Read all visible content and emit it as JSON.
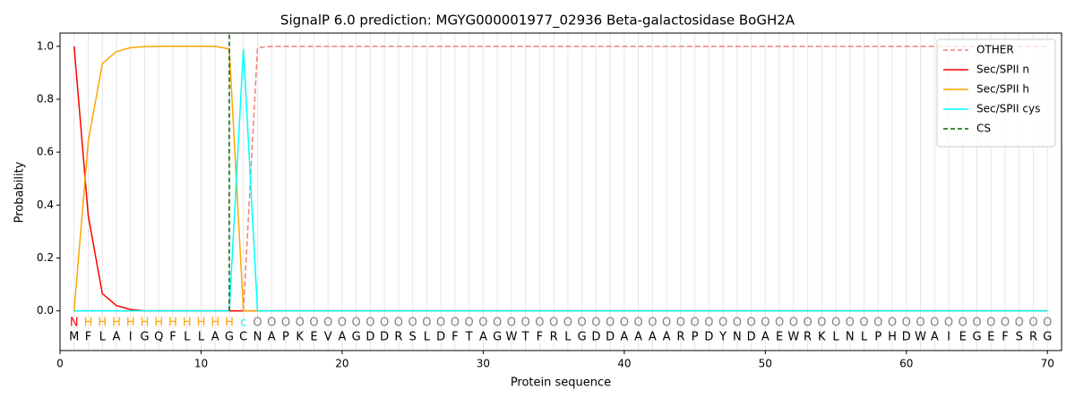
{
  "chart_data": {
    "type": "line",
    "title": "SignalP 6.0 prediction: MGYG000001977_02936 Beta-galactosidase BoGH2A",
    "xlabel": "Protein sequence",
    "ylabel": "Probability",
    "x": [
      1,
      2,
      3,
      4,
      5,
      6,
      7,
      8,
      9,
      10,
      11,
      12,
      13,
      14,
      15,
      16,
      17,
      18,
      19,
      20,
      21,
      22,
      23,
      24,
      25,
      26,
      27,
      28,
      29,
      30,
      31,
      32,
      33,
      34,
      35,
      36,
      37,
      38,
      39,
      40,
      41,
      42,
      43,
      44,
      45,
      46,
      47,
      48,
      49,
      50,
      51,
      52,
      53,
      54,
      55,
      56,
      57,
      58,
      59,
      60,
      61,
      62,
      63,
      64,
      65,
      66,
      67,
      68,
      69,
      70
    ],
    "sequence": [
      "M",
      "F",
      "L",
      "A",
      "I",
      "G",
      "Q",
      "F",
      "L",
      "L",
      "A",
      "G",
      "C",
      "N",
      "A",
      "P",
      "K",
      "E",
      "V",
      "A",
      "G",
      "D",
      "D",
      "R",
      "S",
      "L",
      "D",
      "F",
      "T",
      "A",
      "G",
      "W",
      "T",
      "F",
      "R",
      "L",
      "G",
      "D",
      "D",
      "A",
      "A",
      "A",
      "A",
      "R",
      "P",
      "D",
      "Y",
      "N",
      "D",
      "A",
      "E",
      "W",
      "R",
      "K",
      "L",
      "N",
      "L",
      "P",
      "H",
      "D",
      "W",
      "A",
      "I",
      "E",
      "G",
      "E",
      "F",
      "S",
      "R",
      "G"
    ],
    "regions": [
      "N",
      "H",
      "H",
      "H",
      "H",
      "H",
      "H",
      "H",
      "H",
      "H",
      "H",
      "H",
      "c",
      "O",
      "O",
      "O",
      "O",
      "O",
      "O",
      "O",
      "O",
      "O",
      "O",
      "O",
      "O",
      "O",
      "O",
      "O",
      "O",
      "O",
      "O",
      "O",
      "O",
      "O",
      "O",
      "O",
      "O",
      "O",
      "O",
      "O",
      "O",
      "O",
      "O",
      "O",
      "O",
      "O",
      "O",
      "O",
      "O",
      "O",
      "O",
      "O",
      "O",
      "O",
      "O",
      "O",
      "O",
      "O",
      "O",
      "O",
      "O",
      "O",
      "O",
      "O",
      "O",
      "O",
      "O",
      "O",
      "O",
      "O"
    ],
    "region_colors": {
      "N": "red",
      "H": "orange",
      "c": "cyan",
      "O": "gray"
    },
    "series": [
      {
        "name": "OTHER",
        "color": "lightcoral",
        "dashed": true,
        "values": [
          0,
          0,
          0,
          0,
          0,
          0,
          0,
          0,
          0,
          0,
          0,
          0,
          0,
          0.995,
          1,
          1,
          1,
          1,
          1,
          1,
          1,
          1,
          1,
          1,
          1,
          1,
          1,
          1,
          1,
          1,
          1,
          1,
          1,
          1,
          1,
          1,
          1,
          1,
          1,
          1,
          1,
          1,
          1,
          1,
          1,
          1,
          1,
          1,
          1,
          1,
          1,
          1,
          1,
          1,
          1,
          1,
          1,
          1,
          1,
          1,
          1,
          1,
          1,
          1,
          1,
          1,
          1,
          1,
          1,
          1
        ]
      },
      {
        "name": "Sec/SPII n",
        "color": "red",
        "dashed": false,
        "values": [
          1,
          0.36,
          0.065,
          0.02,
          0.005,
          0,
          0,
          0,
          0,
          0,
          0,
          0,
          0,
          0,
          0,
          0,
          0,
          0,
          0,
          0,
          0,
          0,
          0,
          0,
          0,
          0,
          0,
          0,
          0,
          0,
          0,
          0,
          0,
          0,
          0,
          0,
          0,
          0,
          0,
          0,
          0,
          0,
          0,
          0,
          0,
          0,
          0,
          0,
          0,
          0,
          0,
          0,
          0,
          0,
          0,
          0,
          0,
          0,
          0,
          0,
          0,
          0,
          0,
          0,
          0,
          0,
          0,
          0,
          0,
          0
        ]
      },
      {
        "name": "Sec/SPII h",
        "color": "orange",
        "dashed": false,
        "values": [
          0,
          0.64,
          0.935,
          0.98,
          0.995,
          0.999,
          1,
          1,
          1,
          1,
          1,
          0.99,
          0,
          0,
          0,
          0,
          0,
          0,
          0,
          0,
          0,
          0,
          0,
          0,
          0,
          0,
          0,
          0,
          0,
          0,
          0,
          0,
          0,
          0,
          0,
          0,
          0,
          0,
          0,
          0,
          0,
          0,
          0,
          0,
          0,
          0,
          0,
          0,
          0,
          0,
          0,
          0,
          0,
          0,
          0,
          0,
          0,
          0,
          0,
          0,
          0,
          0,
          0,
          0,
          0,
          0,
          0,
          0,
          0,
          0
        ]
      },
      {
        "name": "Sec/SPII cys",
        "color": "cyan",
        "dashed": false,
        "values": [
          0,
          0,
          0,
          0,
          0,
          0,
          0,
          0,
          0,
          0,
          0,
          0,
          0.99,
          0,
          0,
          0,
          0,
          0,
          0,
          0,
          0,
          0,
          0,
          0,
          0,
          0,
          0,
          0,
          0,
          0,
          0,
          0,
          0,
          0,
          0,
          0,
          0,
          0,
          0,
          0,
          0,
          0,
          0,
          0,
          0,
          0,
          0,
          0,
          0,
          0,
          0,
          0,
          0,
          0,
          0,
          0,
          0,
          0,
          0,
          0,
          0,
          0,
          0,
          0,
          0,
          0,
          0,
          0,
          0,
          0
        ]
      }
    ],
    "cs": {
      "name": "CS",
      "color": "darkgreen",
      "x": 12
    },
    "xlim": [
      0,
      71
    ],
    "ylim": [
      -0.15,
      1.05
    ],
    "xticks": [
      0,
      10,
      20,
      30,
      40,
      50,
      60,
      70
    ],
    "yticks": [
      {
        "value": 0,
        "label": "0.0"
      },
      {
        "value": 0.2,
        "label": "0.2"
      },
      {
        "value": 0.4,
        "label": "0.4"
      },
      {
        "value": 0.6,
        "label": "0.6"
      },
      {
        "value": 0.8,
        "label": "0.8"
      },
      {
        "value": 1,
        "label": "1.0"
      }
    ],
    "legend": "upper right"
  }
}
